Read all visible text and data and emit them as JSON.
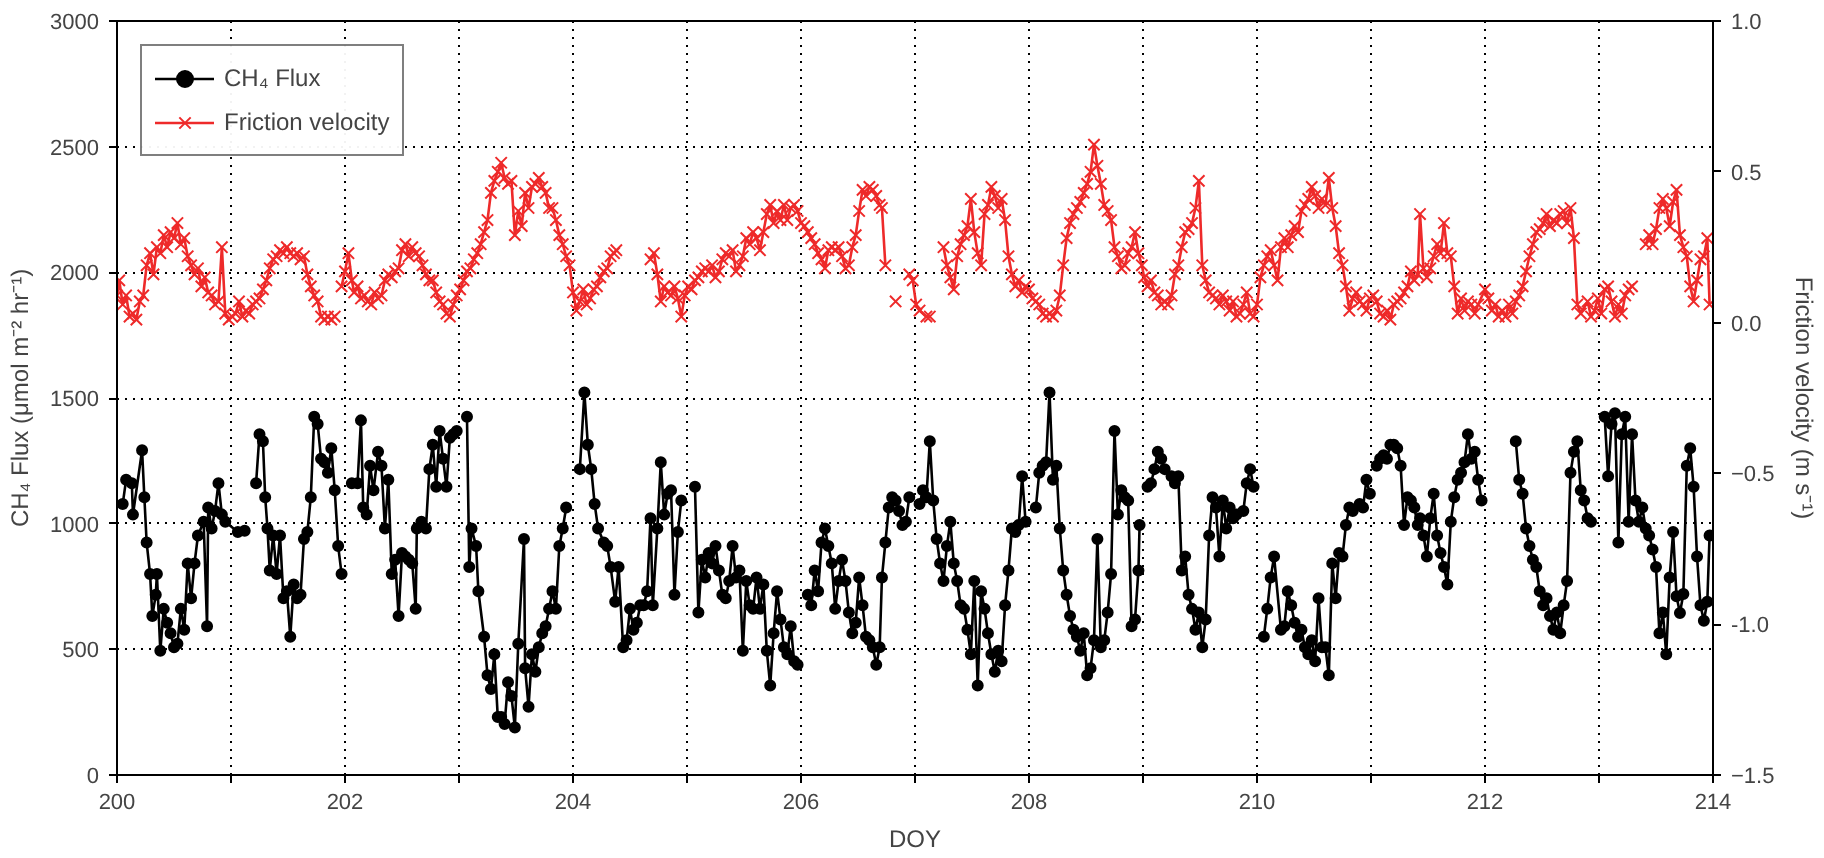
{
  "chart_data": {
    "type": "line",
    "xlabel": "DOY",
    "ylabel": "CH₄ Flux (μmol m⁻² hr⁻¹)",
    "y2label": "Friction velocity (m s⁻¹)",
    "xlim": [
      200,
      214
    ],
    "ylim": [
      0,
      3000
    ],
    "y2lim": [
      -1.5,
      1.0
    ],
    "xticks": [
      200,
      {
        "value": 201,
        "label": null
      },
      202,
      {
        "value": 203,
        "label": null
      },
      204,
      {
        "value": 205,
        "label": null
      },
      206,
      {
        "value": 207,
        "label": null
      },
      208,
      {
        "value": 209,
        "label": null
      },
      210,
      {
        "value": 211,
        "label": null
      },
      212,
      {
        "value": 213,
        "label": null
      },
      214
    ],
    "yticks": [
      0,
      500,
      1000,
      1500,
      2000,
      2500,
      3000
    ],
    "y2ticks": [
      -1.5,
      {
        "value": -1,
        "label": "-1.0"
      },
      -0.5,
      {
        "value": 0,
        "label": "0.0"
      },
      0.5,
      {
        "value": 1,
        "label": "1.0"
      }
    ],
    "grid": true,
    "legend": "top left",
    "series": [
      {
        "name": "CH₄ Flux",
        "color": "#000000",
        "marker": "circle",
        "axis": "y",
        "x": [
          200.05,
          200.08,
          200.13,
          200.14,
          200.22,
          200.24,
          200.26,
          200.29,
          200.31,
          200.34,
          200.35,
          200.38,
          200.41,
          200.44,
          200.47,
          200.5,
          200.53,
          200.56,
          200.59,
          200.62,
          200.65,
          200.68,
          200.71,
          200.76,
          200.79,
          200.8,
          200.83,
          200.86,
          200.89,
          200.92,
          200.95,
          201.06,
          201.12,
          201.17,
          201.22,
          201.25,
          201.28,
          201.3,
          201.32,
          201.34,
          201.37,
          201.4,
          201.43,
          201.46,
          201.49,
          201.52,
          201.55,
          201.58,
          201.61,
          201.64,
          201.67,
          201.7,
          201.73,
          201.76,
          201.79,
          201.82,
          201.85,
          201.88,
          201.91,
          201.94,
          201.97,
          202.0,
          202.06,
          202.11,
          202.14,
          202.16,
          202.19,
          202.22,
          202.25,
          202.29,
          202.32,
          202.35,
          202.38,
          202.41,
          202.44,
          202.47,
          202.5,
          202.53,
          202.56,
          202.59,
          202.62,
          202.63,
          202.67,
          202.71,
          202.74,
          202.77,
          202.8,
          202.83,
          202.86,
          202.89,
          202.92,
          202.95,
          202.98,
          203.02,
          203.07,
          203.09,
          203.11,
          203.15,
          203.17,
          203.22,
          203.25,
          203.28,
          203.31,
          203.34,
          203.37,
          203.4,
          203.43,
          203.46,
          203.49,
          203.52,
          203.57,
          203.58,
          203.61,
          203.64,
          203.67,
          203.7,
          203.73,
          203.76,
          203.79,
          203.82,
          203.85,
          203.88,
          203.91,
          203.94,
          204.0,
          204.06,
          204.1,
          204.13,
          204.16,
          204.19,
          204.22,
          204.27,
          204.3,
          204.33,
          204.37,
          204.4,
          204.44,
          204.47,
          204.5,
          204.53,
          204.56,
          204.59,
          204.62,
          204.65,
          204.68,
          204.7,
          204.74,
          204.77,
          204.8,
          204.83,
          204.86,
          204.89,
          204.92,
          204.95,
          205.0,
          205.07,
          205.1,
          205.13,
          205.16,
          205.19,
          205.22,
          205.25,
          205.28,
          205.31,
          205.34,
          205.37,
          205.4,
          205.43,
          205.46,
          205.49,
          205.52,
          205.55,
          205.58,
          205.61,
          205.64,
          205.67,
          205.7,
          205.73,
          205.76,
          205.79,
          205.82,
          205.85,
          205.88,
          205.91,
          205.94,
          205.97,
          206.0,
          206.06,
          206.09,
          206.12,
          206.15,
          206.18,
          206.21,
          206.24,
          206.27,
          206.3,
          206.33,
          206.36,
          206.39,
          206.42,
          206.45,
          206.48,
          206.51,
          206.54,
          206.57,
          206.6,
          206.63,
          206.66,
          206.69,
          206.71,
          206.74,
          206.77,
          206.8,
          206.83,
          206.86,
          206.89,
          206.92,
          206.95,
          207.0,
          207.04,
          207.07,
          207.1,
          207.13,
          207.16,
          207.19,
          207.22,
          207.25,
          207.28,
          207.31,
          207.34,
          207.37,
          207.4,
          207.43,
          207.46,
          207.49,
          207.52,
          207.55,
          207.58,
          207.61,
          207.64,
          207.67,
          207.7,
          207.73,
          207.76,
          207.79,
          207.82,
          207.85,
          207.88,
          207.91,
          207.94,
          207.97,
          208.0,
          208.06,
          208.09,
          208.12,
          208.15,
          208.18,
          208.21,
          208.24,
          208.27,
          208.3,
          208.33,
          208.36,
          208.39,
          208.42,
          208.45,
          208.48,
          208.51,
          208.54,
          208.57,
          208.6,
          208.63,
          208.66,
          208.69,
          208.72,
          208.75,
          208.78,
          208.81,
          208.84,
          208.87,
          208.9,
          208.93,
          208.96,
          208.97,
          209.0,
          209.04,
          209.07,
          209.1,
          209.13,
          209.16,
          209.19,
          209.25,
          209.28,
          209.31,
          209.34,
          209.37,
          209.4,
          209.43,
          209.46,
          209.49,
          209.52,
          209.55,
          209.58,
          209.61,
          209.64,
          209.67,
          209.7,
          209.73,
          209.76,
          209.79,
          209.82,
          209.88,
          209.91,
          209.94,
          209.97,
          210.0,
          210.06,
          210.09,
          210.12,
          210.15,
          210.21,
          210.24,
          210.27,
          210.3,
          210.33,
          210.36,
          210.39,
          210.42,
          210.45,
          210.48,
          210.51,
          210.54,
          210.57,
          210.6,
          210.63,
          210.66,
          210.69,
          210.72,
          210.75,
          210.78,
          210.81,
          210.84,
          210.9,
          210.93,
          210.96,
          210.99,
          211.02,
          211.05,
          211.08,
          211.11,
          211.14,
          211.17,
          211.2,
          211.23,
          211.26,
          211.29,
          211.32,
          211.35,
          211.38,
          211.41,
          211.43,
          211.46,
          211.49,
          211.52,
          211.55,
          211.58,
          211.61,
          211.64,
          211.67,
          211.7,
          211.73,
          211.76,
          211.79,
          211.82,
          211.85,
          211.88,
          211.91,
          211.94,
          211.97,
          212.1,
          212.27,
          212.3,
          212.33,
          212.36,
          212.39,
          212.42,
          212.45,
          212.48,
          212.51,
          212.54,
          212.57,
          212.6,
          212.63,
          212.66,
          212.69,
          212.72,
          212.75,
          212.78,
          212.81,
          212.84,
          212.87,
          212.9,
          212.93,
          213.0,
          213.05,
          213.08,
          213.11,
          213.14,
          213.17,
          213.2,
          213.23,
          213.26,
          213.29,
          213.32,
          213.35,
          213.38,
          213.41,
          213.44,
          213.47,
          213.5,
          213.53,
          213.56,
          213.59,
          213.62,
          213.65,
          213.68,
          213.71,
          213.74,
          213.77,
          213.8,
          213.83,
          213.86,
          213.89,
          213.92,
          213.95,
          213.97
        ],
        "values": [
          1078,
          1175,
          1161,
          1036,
          1292,
          1105,
          925,
          800,
          633,
          717,
          800,
          494,
          661,
          606,
          564,
          508,
          522,
          661,
          578,
          842,
          703,
          842,
          953,
          1008,
          592,
          1064,
          981,
          1050,
          1161,
          1036,
          1008,
          967,
          972,
          null,
          1161,
          1356,
          1328,
          1105,
          981,
          814,
          953,
          800,
          953,
          703,
          731,
          550,
          758,
          703,
          717,
          939,
          967,
          1105,
          1425,
          1397,
          1258,
          1244,
          1203,
          1300,
          1133,
          911,
          800,
          null,
          1161,
          1161,
          1411,
          1064,
          1036,
          1230,
          1133,
          1286,
          1230,
          981,
          1175,
          800,
          856,
          633,
          883,
          869,
          856,
          842,
          661,
          981,
          1008,
          981,
          1217,
          1314,
          1147,
          1369,
          1258,
          1147,
          1342,
          1356,
          1369,
          null,
          1425,
          828,
          981,
          911,
          731,
          550,
          397,
          342,
          480,
          231,
          231,
          203,
          369,
          314,
          189,
          522,
          939,
          425,
          272,
          480,
          411,
          508,
          564,
          592,
          661,
          731,
          661,
          911,
          981,
          1064,
          null,
          1217,
          1522,
          1314,
          1217,
          1078,
          981,
          925,
          911,
          828,
          689,
          828,
          508,
          536,
          661,
          578,
          606,
          675,
          675,
          731,
          1022,
          675,
          981,
          1244,
          1036,
          1119,
          1133,
          717,
          967,
          1092,
          null,
          1147,
          647,
          856,
          786,
          883,
          842,
          911,
          814,
          717,
          703,
          772,
          911,
          786,
          814,
          494,
          772,
          675,
          661,
          786,
          661,
          758,
          494,
          356,
          564,
          731,
          619,
          508,
          480,
          592,
          453,
          439,
          null,
          717,
          675,
          814,
          731,
          925,
          981,
          911,
          842,
          661,
          772,
          856,
          772,
          647,
          564,
          606,
          786,
          675,
          550,
          536,
          508,
          439,
          508,
          786,
          925,
          1064,
          1105,
          1092,
          1050,
          995,
          1008,
          1105,
          null,
          1078,
          1133,
          1105,
          1328,
          1092,
          939,
          842,
          772,
          911,
          1008,
          842,
          772,
          675,
          661,
          578,
          480,
          772,
          356,
          731,
          661,
          564,
          480,
          411,
          494,
          453,
          675,
          814,
          981,
          967,
          995,
          1189,
          1008,
          null,
          1064,
          1203,
          1230,
          1244,
          1522,
          1175,
          1230,
          981,
          814,
          717,
          633,
          578,
          550,
          494,
          564,
          397,
          425,
          536,
          939,
          508,
          536,
          647,
          800,
          1369,
          1036,
          1133,
          1105,
          1092,
          592,
          619,
          814,
          995,
          null,
          1147,
          1161,
          1217,
          1286,
          1258,
          1217,
          1189,
          1161,
          1189,
          814,
          869,
          717,
          661,
          578,
          647,
          508,
          619,
          953,
          1105,
          1064,
          869,
          1092,
          981,
          1064,
          1022,
          1036,
          1050,
          1161,
          1217,
          1147,
          null,
          550,
          661,
          786,
          869,
          578,
          592,
          731,
          675,
          606,
          550,
          578,
          508,
          480,
          536,
          453,
          703,
          508,
          508,
          397,
          842,
          703,
          883,
          869,
          995,
          1064,
          1050,
          1078,
          1064,
          1175,
          1119,
          null,
          1230,
          1258,
          1272,
          1258,
          1314,
          1314,
          1300,
          1230,
          995,
          1105,
          1092,
          1064,
          995,
          1022,
          953,
          869,
          1022,
          1119,
          953,
          883,
          828,
          758,
          1008,
          1105,
          1175,
          1203,
          1244,
          1356,
          1258,
          1286,
          1175,
          1092,
          null,
          1328,
          1175,
          1119,
          981,
          911,
          856,
          828,
          731,
          675,
          703,
          633,
          578,
          647,
          564,
          675,
          772,
          1203,
          1286,
          1328,
          1133,
          1092,
          1022,
          1008,
          null,
          1425,
          1189,
          1397,
          1439,
          925,
          1356,
          1425,
          1008,
          1356,
          1092,
          1008,
          1064,
          981,
          953,
          897,
          828,
          564,
          647,
          480,
          786,
          967,
          711,
          645,
          720,
          1230,
          1300,
          1147,
          869,
          675,
          614,
          689,
          953
        ]
      },
      {
        "name": "Friction velocity",
        "color": "#ee2a2a",
        "marker": "cross",
        "axis": "y2",
        "x": [
          200.0,
          200.02,
          200.05,
          200.08,
          200.11,
          200.14,
          200.17,
          200.2,
          200.23,
          200.26,
          200.29,
          200.32,
          200.35,
          200.38,
          200.41,
          200.44,
          200.47,
          200.5,
          200.53,
          200.56,
          200.59,
          200.62,
          200.65,
          200.68,
          200.71,
          200.74,
          200.77,
          200.8,
          200.83,
          200.86,
          200.89,
          200.92,
          200.95,
          200.98,
          201.01,
          201.04,
          201.07,
          201.1,
          201.13,
          201.16,
          201.19,
          201.22,
          201.25,
          201.28,
          201.31,
          201.34,
          201.37,
          201.4,
          201.43,
          201.46,
          201.49,
          201.52,
          201.55,
          201.58,
          201.61,
          201.64,
          201.67,
          201.7,
          201.73,
          201.76,
          201.79,
          201.82,
          201.85,
          201.88,
          201.91,
          201.94,
          201.97,
          202.0,
          202.03,
          202.06,
          202.08,
          202.11,
          202.14,
          202.17,
          202.2,
          202.23,
          202.26,
          202.29,
          202.32,
          202.35,
          202.38,
          202.41,
          202.44,
          202.47,
          202.5,
          202.53,
          202.56,
          202.59,
          202.62,
          202.65,
          202.68,
          202.71,
          202.74,
          202.77,
          202.8,
          202.83,
          202.86,
          202.89,
          202.92,
          202.95,
          202.98,
          203.01,
          203.04,
          203.07,
          203.1,
          203.13,
          203.16,
          203.19,
          203.22,
          203.25,
          203.28,
          203.31,
          203.34,
          203.37,
          203.4,
          203.43,
          203.46,
          203.49,
          203.52,
          203.55,
          203.58,
          203.61,
          203.64,
          203.67,
          203.7,
          203.73,
          203.76,
          203.79,
          203.82,
          203.85,
          203.88,
          203.91,
          203.94,
          203.97,
          204.0,
          204.03,
          204.06,
          204.09,
          204.12,
          204.15,
          204.18,
          204.21,
          204.24,
          204.27,
          204.3,
          204.33,
          204.36,
          204.38,
          204.5,
          204.68,
          204.71,
          204.74,
          204.77,
          204.8,
          204.83,
          204.86,
          204.89,
          204.92,
          204.95,
          204.98,
          205.01,
          205.04,
          205.07,
          205.1,
          205.13,
          205.16,
          205.19,
          205.22,
          205.25,
          205.28,
          205.31,
          205.34,
          205.37,
          205.4,
          205.43,
          205.46,
          205.49,
          205.52,
          205.55,
          205.58,
          205.61,
          205.64,
          205.67,
          205.7,
          205.73,
          205.76,
          205.79,
          205.82,
          205.85,
          205.88,
          205.91,
          205.94,
          205.97,
          206.0,
          206.03,
          206.06,
          206.09,
          206.12,
          206.15,
          206.18,
          206.21,
          206.24,
          206.27,
          206.3,
          206.33,
          206.36,
          206.39,
          206.42,
          206.45,
          206.48,
          206.51,
          206.54,
          206.57,
          206.6,
          206.63,
          206.66,
          206.69,
          206.71,
          206.74,
          206.8,
          206.83,
          206.9,
          206.95,
          206.98,
          207.01,
          207.04,
          207.1,
          207.13,
          207.2,
          207.25,
          207.28,
          207.31,
          207.34,
          207.37,
          207.4,
          207.43,
          207.46,
          207.49,
          207.52,
          207.55,
          207.58,
          207.61,
          207.64,
          207.67,
          207.7,
          207.73,
          207.76,
          207.79,
          207.82,
          207.85,
          207.88,
          207.91,
          207.94,
          207.97,
          208.0,
          208.03,
          208.06,
          208.09,
          208.12,
          208.15,
          208.18,
          208.21,
          208.24,
          208.27,
          208.3,
          208.33,
          208.36,
          208.39,
          208.42,
          208.45,
          208.48,
          208.51,
          208.54,
          208.57,
          208.6,
          208.63,
          208.66,
          208.69,
          208.72,
          208.75,
          208.78,
          208.81,
          208.84,
          208.87,
          208.9,
          208.93,
          208.96,
          208.99,
          209.01,
          209.04,
          209.07,
          209.1,
          209.13,
          209.16,
          209.19,
          209.22,
          209.25,
          209.28,
          209.31,
          209.34,
          209.37,
          209.4,
          209.43,
          209.46,
          209.49,
          209.52,
          209.55,
          209.58,
          209.61,
          209.64,
          209.67,
          209.7,
          209.73,
          209.76,
          209.79,
          209.82,
          209.85,
          209.88,
          209.91,
          209.94,
          209.97,
          210.0,
          210.03,
          210.06,
          210.09,
          210.12,
          210.15,
          210.18,
          210.21,
          210.24,
          210.27,
          210.3,
          210.33,
          210.36,
          210.39,
          210.42,
          210.45,
          210.48,
          210.51,
          210.54,
          210.57,
          210.6,
          210.63,
          210.66,
          210.69,
          210.72,
          210.75,
          210.78,
          210.81,
          210.84,
          210.87,
          210.9,
          210.93,
          210.96,
          210.99,
          211.02,
          211.05,
          211.08,
          211.11,
          211.14,
          211.17,
          211.2,
          211.23,
          211.26,
          211.29,
          211.32,
          211.35,
          211.38,
          211.41,
          211.43,
          211.46,
          211.49,
          211.52,
          211.55,
          211.58,
          211.61,
          211.64,
          211.67,
          211.7,
          211.73,
          211.76,
          211.79,
          211.82,
          211.85,
          211.88,
          211.91,
          211.94,
          212.0,
          212.03,
          212.06,
          212.09,
          212.12,
          212.15,
          212.18,
          212.21,
          212.24,
          212.27,
          212.3,
          212.33,
          212.36,
          212.39,
          212.42,
          212.45,
          212.48,
          212.51,
          212.54,
          212.57,
          212.6,
          212.63,
          212.66,
          212.69,
          212.72,
          212.75,
          212.78,
          212.81,
          212.84,
          212.9,
          212.93,
          212.96,
          212.99,
          213.02,
          213.05,
          213.08,
          213.11,
          213.14,
          213.17,
          213.2,
          213.23,
          213.26,
          213.29,
          213.35,
          213.41,
          213.44,
          213.47,
          213.5,
          213.53,
          213.56,
          213.59,
          213.62,
          213.65,
          213.68,
          213.71,
          213.74,
          213.77,
          213.8,
          213.83,
          213.86,
          213.89,
          213.92,
          213.95,
          213.97
        ],
        "values": [
          0.09,
          0.14,
          0.06,
          0.09,
          0.02,
          0.03,
          0.01,
          0.07,
          0.09,
          0.19,
          0.23,
          0.16,
          0.25,
          0.23,
          0.29,
          0.25,
          0.3,
          0.28,
          0.33,
          0.26,
          0.28,
          0.22,
          0.19,
          0.16,
          0.18,
          0.12,
          0.15,
          0.1,
          0.09,
          0.06,
          0.07,
          0.25,
          0.03,
          0.01,
          0.02,
          0.03,
          0.07,
          0.02,
          0.04,
          0.03,
          0.06,
          0.07,
          0.08,
          0.11,
          0.14,
          0.18,
          0.21,
          0.22,
          0.24,
          0.23,
          0.25,
          0.23,
          0.22,
          0.23,
          0.21,
          0.22,
          0.16,
          0.12,
          0.09,
          0.07,
          0.02,
          0.01,
          0.02,
          0.01,
          0.02,
          null,
          0.12,
          0.17,
          0.23,
          0.14,
          0.1,
          0.12,
          0.08,
          0.09,
          0.07,
          0.06,
          0.1,
          0.08,
          0.09,
          0.14,
          0.16,
          0.15,
          0.17,
          0.18,
          0.24,
          0.26,
          0.22,
          0.25,
          0.23,
          0.22,
          0.19,
          0.16,
          0.14,
          0.14,
          0.1,
          0.07,
          0.06,
          0.03,
          0.02,
          0.06,
          0.09,
          0.11,
          0.14,
          0.17,
          0.18,
          0.21,
          0.23,
          0.26,
          0.3,
          0.34,
          0.43,
          0.47,
          0.5,
          0.53,
          0.48,
          0.46,
          0.47,
          0.29,
          0.37,
          0.32,
          0.43,
          0.38,
          0.45,
          0.46,
          0.48,
          0.45,
          0.43,
          0.38,
          0.38,
          0.34,
          0.29,
          0.26,
          0.22,
          0.19,
          0.1,
          0.04,
          0.07,
          0.11,
          0.06,
          0.08,
          0.11,
          0.12,
          0.15,
          0.17,
          0.18,
          0.22,
          0.23,
          0.24,
          null,
          0.21,
          0.23,
          0.16,
          0.07,
          0.12,
          0.1,
          0.09,
          0.12,
          0.08,
          0.02,
          0.09,
          0.12,
          0.11,
          0.14,
          0.15,
          0.17,
          0.18,
          0.17,
          0.19,
          0.15,
          0.17,
          0.21,
          0.23,
          0.22,
          0.24,
          0.17,
          0.19,
          0.22,
          0.28,
          0.26,
          0.3,
          0.28,
          0.24,
          0.3,
          0.36,
          0.39,
          0.33,
          0.37,
          0.34,
          0.39,
          0.34,
          0.38,
          0.39,
          0.37,
          0.33,
          0.32,
          0.3,
          0.28,
          0.26,
          0.23,
          0.21,
          0.18,
          0.24,
          0.25,
          0.24,
          0.25,
          0.22,
          0.18,
          0.19,
          0.25,
          0.29,
          0.37,
          0.44,
          0.42,
          0.45,
          0.44,
          0.42,
          0.39,
          0.38,
          0.19,
          null,
          0.07,
          null,
          0.16,
          0.14,
          0.06,
          0.04,
          0.02,
          0.02,
          null,
          0.25,
          0.19,
          0.15,
          0.11,
          0.22,
          0.26,
          0.29,
          0.32,
          0.41,
          0.3,
          0.23,
          0.19,
          0.36,
          0.39,
          0.45,
          0.42,
          0.38,
          0.41,
          0.34,
          0.22,
          0.16,
          0.12,
          0.14,
          0.1,
          0.12,
          0.11,
          0.08,
          0.07,
          0.06,
          0.03,
          0.02,
          0.03,
          0.02,
          0.04,
          0.09,
          0.19,
          0.28,
          0.33,
          0.36,
          0.38,
          0.4,
          0.43,
          0.46,
          0.5,
          0.59,
          0.52,
          0.46,
          0.39,
          0.37,
          0.34,
          0.25,
          0.22,
          0.18,
          0.19,
          0.23,
          0.25,
          0.3,
          0.23,
          0.19,
          0.15,
          0.12,
          0.14,
          0.1,
          0.09,
          0.06,
          0.07,
          0.06,
          0.09,
          0.16,
          0.19,
          0.25,
          0.3,
          0.31,
          0.33,
          0.38,
          0.47,
          0.19,
          0.14,
          0.1,
          0.09,
          0.08,
          0.06,
          0.09,
          0.07,
          0.04,
          0.07,
          0.02,
          0.03,
          0.06,
          0.1,
          0.03,
          0.02,
          0.06,
          0.15,
          0.19,
          0.22,
          0.24,
          0.19,
          0.14,
          0.25,
          0.28,
          0.25,
          0.29,
          0.32,
          0.3,
          0.37,
          0.39,
          0.41,
          0.45,
          0.42,
          0.38,
          0.41,
          0.39,
          0.48,
          0.38,
          0.32,
          0.23,
          0.19,
          0.12,
          0.04,
          0.08,
          0.1,
          0.07,
          0.06,
          0.04,
          0.08,
          0.09,
          0.07,
          0.03,
          0.02,
          0.04,
          0.01,
          0.06,
          0.07,
          0.08,
          0.1,
          0.12,
          0.17,
          0.14,
          0.16,
          0.36,
          0.18,
          0.15,
          0.18,
          0.22,
          0.26,
          0.23,
          0.33,
          0.23,
          0.22,
          0.12,
          0.03,
          0.08,
          0.04,
          0.07,
          0.06,
          0.03,
          0.06,
          0.11,
          0.08,
          0.04,
          0.06,
          0.02,
          0.04,
          0.02,
          0.06,
          0.03,
          0.07,
          0.09,
          0.12,
          0.17,
          0.22,
          0.26,
          0.3,
          0.31,
          0.33,
          0.36,
          0.32,
          0.34,
          0.33,
          0.36,
          0.37,
          0.33,
          0.38,
          0.28,
          0.06,
          0.03,
          0.07,
          0.02,
          0.04,
          0.08,
          0.03,
          0.11,
          0.12,
          0.07,
          0.02,
          0.06,
          0.03,
          0.09,
          0.11,
          0.12,
          null,
          0.26,
          0.29,
          0.26,
          0.31,
          0.38,
          0.41,
          0.38,
          0.32,
          0.4,
          0.44,
          0.29,
          0.25,
          0.22,
          0.12,
          0.07,
          0.14,
          0.21,
          0.22,
          0.28,
          0.06
        ]
      }
    ]
  }
}
